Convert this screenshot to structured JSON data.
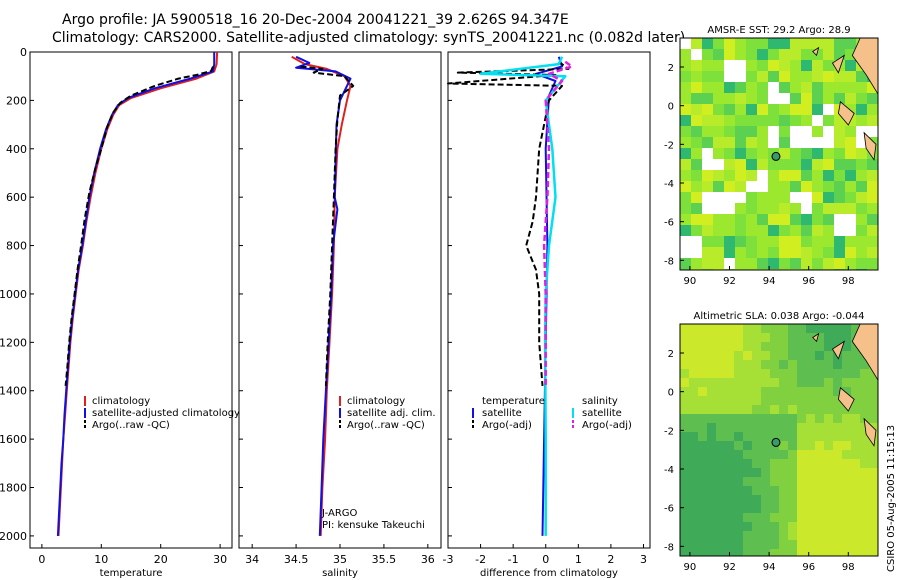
{
  "title_line1": "Argo profile: JA 5900518_16 20-Dec-2004 20041221_39 2.626S 94.347E",
  "title_line2": "Climatology: CARS2000. Satellite-adjusted climatology: synTS_20041221.nc (0.082d later)",
  "credit": "CSIRO 05-Aug-2005 11:15:13",
  "colors": {
    "climatology": "#e02020",
    "satellite": "#1010e0",
    "argo": "#000000",
    "salinity_sat": "#00e0f0",
    "salinity_argo": "#e020e0",
    "land": "#f5c08a"
  },
  "chart_data": [
    {
      "type": "line",
      "id": "temperature",
      "xlabel": "temperature",
      "ylabel": "",
      "xlim": [
        -2,
        32
      ],
      "ylim": [
        2050,
        0
      ],
      "xticks": [
        0,
        10,
        20,
        30
      ],
      "yticks": [
        0,
        200,
        400,
        600,
        800,
        1000,
        1200,
        1400,
        1600,
        1800,
        2000
      ],
      "legend_position": "bottom-right",
      "series": [
        {
          "name": "climatology",
          "style": "climatology",
          "points": [
            [
              29.5,
              0
            ],
            [
              29.4,
              50
            ],
            [
              29.0,
              80
            ],
            [
              26,
              110
            ],
            [
              20,
              150
            ],
            [
              15,
              190
            ],
            [
              13,
              220
            ],
            [
              12,
              260
            ],
            [
              11,
              320
            ],
            [
              10,
              400
            ],
            [
              9,
              500
            ],
            [
              8.2,
              600
            ],
            [
              7.5,
              700
            ],
            [
              6.9,
              800
            ],
            [
              6.2,
              900
            ],
            [
              5.7,
              1000
            ],
            [
              5.2,
              1100
            ],
            [
              4.8,
              1200
            ],
            [
              4.5,
              1300
            ],
            [
              4.2,
              1400
            ],
            [
              3.9,
              1500
            ],
            [
              3.6,
              1600
            ],
            [
              3.4,
              1700
            ],
            [
              3.2,
              1800
            ],
            [
              3.0,
              1900
            ],
            [
              2.8,
              2000
            ]
          ]
        },
        {
          "name": "satellite-adjusted climatology",
          "style": "satellite",
          "points": [
            [
              29.0,
              0
            ],
            [
              29.0,
              50
            ],
            [
              28.8,
              80
            ],
            [
              25,
              110
            ],
            [
              19,
              150
            ],
            [
              14.5,
              190
            ],
            [
              12.8,
              220
            ],
            [
              11.8,
              260
            ],
            [
              10.8,
              320
            ],
            [
              9.8,
              400
            ],
            [
              8.8,
              500
            ],
            [
              8.0,
              600
            ],
            [
              7.4,
              700
            ],
            [
              6.8,
              800
            ],
            [
              6.1,
              900
            ],
            [
              5.6,
              1000
            ],
            [
              5.1,
              1100
            ],
            [
              4.7,
              1200
            ],
            [
              4.4,
              1300
            ],
            [
              4.1,
              1400
            ],
            [
              3.8,
              1500
            ],
            [
              3.6,
              1600
            ],
            [
              3.3,
              1700
            ],
            [
              3.1,
              1800
            ],
            [
              2.9,
              1900
            ],
            [
              2.7,
              2000
            ]
          ]
        },
        {
          "name": "Argo(..raw -QC)",
          "style": "argo",
          "points": [
            [
              28.8,
              60
            ],
            [
              28.5,
              78
            ],
            [
              26,
              95
            ],
            [
              23,
              110
            ],
            [
              19,
              140
            ],
            [
              15,
              180
            ],
            [
              13.2,
              210
            ],
            [
              12,
              250
            ],
            [
              11,
              310
            ],
            [
              10,
              400
            ],
            [
              9.0,
              480
            ],
            [
              8.0,
              580
            ],
            [
              7.2,
              690
            ],
            [
              6.6,
              800
            ],
            [
              6.0,
              900
            ],
            [
              5.5,
              1000
            ],
            [
              5.0,
              1100
            ],
            [
              4.6,
              1200
            ],
            [
              4.3,
              1300
            ],
            [
              4.0,
              1380
            ]
          ]
        }
      ]
    },
    {
      "type": "line",
      "id": "salinity",
      "xlabel": "salinity",
      "xlim": [
        33.85,
        36.15
      ],
      "ylim": [
        2050,
        0
      ],
      "xticks": [
        34,
        34.5,
        35,
        35.5,
        36
      ],
      "yticks": [
        0,
        200,
        400,
        600,
        800,
        1000,
        1200,
        1400,
        1600,
        1800,
        2000
      ],
      "legend_position": "bottom-right",
      "annotations": [
        "J-ARGO",
        "PI: kensuke Takeuchi"
      ],
      "series": [
        {
          "name": "climatology",
          "style": "climatology",
          "points": [
            [
              34.45,
              20
            ],
            [
              34.6,
              50
            ],
            [
              34.85,
              70
            ],
            [
              35.05,
              100
            ],
            [
              35.12,
              140
            ],
            [
              35.08,
              200
            ],
            [
              35.02,
              300
            ],
            [
              34.97,
              400
            ],
            [
              34.94,
              600
            ],
            [
              34.93,
              800
            ],
            [
              34.91,
              1000
            ],
            [
              34.88,
              1200
            ],
            [
              34.85,
              1400
            ],
            [
              34.83,
              1600
            ],
            [
              34.8,
              1800
            ],
            [
              34.78,
              2000
            ]
          ]
        },
        {
          "name": "satellite adj. clim.",
          "style": "satellite",
          "points": [
            [
              34.5,
              20
            ],
            [
              34.65,
              45
            ],
            [
              34.5,
              65
            ],
            [
              34.95,
              80
            ],
            [
              35.12,
              110
            ],
            [
              35.0,
              200
            ],
            [
              34.96,
              300
            ],
            [
              34.95,
              450
            ],
            [
              34.94,
              600
            ],
            [
              34.97,
              650
            ],
            [
              34.92,
              800
            ],
            [
              34.9,
              1000
            ],
            [
              34.87,
              1200
            ],
            [
              34.84,
              1400
            ],
            [
              34.81,
              1600
            ],
            [
              34.79,
              1800
            ],
            [
              34.77,
              2000
            ]
          ]
        },
        {
          "name": "Argo(..raw -QC)",
          "style": "argo",
          "points": [
            [
              34.55,
              60
            ],
            [
              34.8,
              70
            ],
            [
              34.7,
              85
            ],
            [
              35.05,
              100
            ],
            [
              35.15,
              140
            ],
            [
              35.0,
              180
            ],
            [
              34.97,
              280
            ],
            [
              34.95,
              400
            ],
            [
              34.93,
              600
            ],
            [
              34.91,
              800
            ],
            [
              34.89,
              1000
            ],
            [
              34.86,
              1200
            ],
            [
              34.84,
              1380
            ]
          ]
        }
      ]
    },
    {
      "type": "line",
      "id": "difference",
      "xlabel": "difference from climatology",
      "xlim": [
        -3.0,
        3.2
      ],
      "ylim": [
        2050,
        0
      ],
      "xticks": [
        -3,
        -2,
        -1,
        0,
        1,
        2,
        3
      ],
      "yticks": [
        0,
        200,
        400,
        600,
        800,
        1000,
        1200,
        1400,
        1600,
        1800,
        2000
      ],
      "legend_position": "bottom",
      "legend_headers": [
        "temperature",
        "salinity"
      ],
      "series": [
        {
          "name": "satellite",
          "group": "temperature",
          "style": "satellite",
          "points": [
            [
              0.4,
              20
            ],
            [
              0.5,
              60
            ],
            [
              -0.3,
              90
            ],
            [
              0.3,
              120
            ],
            [
              0.1,
              180
            ],
            [
              0.0,
              400
            ],
            [
              0.05,
              800
            ],
            [
              0.0,
              1200
            ],
            [
              -0.05,
              1600
            ],
            [
              -0.1,
              2000
            ]
          ]
        },
        {
          "name": "Argo(-adj)",
          "group": "temperature",
          "style": "argo",
          "points": [
            [
              0.4,
              40
            ],
            [
              0.7,
              70
            ],
            [
              -2.7,
              85
            ],
            [
              0.3,
              95
            ],
            [
              -3.0,
              130
            ],
            [
              0.5,
              140
            ],
            [
              0.1,
              200
            ],
            [
              -0.2,
              400
            ],
            [
              -0.3,
              600
            ],
            [
              -0.4,
              700
            ],
            [
              -0.6,
              800
            ],
            [
              -0.3,
              900
            ],
            [
              -0.2,
              1000
            ],
            [
              -0.2,
              1200
            ],
            [
              -0.1,
              1380
            ]
          ]
        },
        {
          "name": "satellite",
          "group": "salinity",
          "style": "salinity_sat",
          "points": [
            [
              0.5,
              20
            ],
            [
              0.4,
              50
            ],
            [
              -2.0,
              90
            ],
            [
              0.6,
              100
            ],
            [
              0.0,
              200
            ],
            [
              0.2,
              400
            ],
            [
              0.3,
              600
            ],
            [
              0.1,
              800
            ],
            [
              0.0,
              1000
            ],
            [
              -0.02,
              1200
            ],
            [
              0.0,
              1600
            ],
            [
              0.0,
              2000
            ]
          ]
        },
        {
          "name": "Argo(-adj)",
          "group": "salinity",
          "style": "salinity_argo",
          "points": [
            [
              0.6,
              40
            ],
            [
              0.8,
              60
            ],
            [
              0.1,
              90
            ],
            [
              0.5,
              120
            ],
            [
              0.0,
              200
            ],
            [
              0.1,
              400
            ],
            [
              0.05,
              600
            ],
            [
              -0.05,
              800
            ],
            [
              0.0,
              1000
            ],
            [
              0.0,
              1200
            ],
            [
              0.0,
              1380
            ]
          ]
        }
      ]
    },
    {
      "type": "heatmap",
      "id": "sst-map",
      "title": "AMSR-E SST: 29.2 Argo: 28.9",
      "xlim": [
        89.5,
        99.5
      ],
      "ylim": [
        -8.5,
        3.5
      ],
      "xticks": [
        90,
        92,
        94,
        96,
        98
      ],
      "yticks": [
        -8,
        -6,
        -4,
        -2,
        0,
        2
      ],
      "marker": [
        94.347,
        -2.626
      ]
    },
    {
      "type": "heatmap",
      "id": "sla-map",
      "title": "Altimetric SLA: 0.038 Argo: -0.044",
      "xlim": [
        89.5,
        99.5
      ],
      "ylim": [
        -8.5,
        3.5
      ],
      "xticks": [
        90,
        92,
        94,
        96,
        98
      ],
      "yticks": [
        -8,
        -6,
        -4,
        -2,
        0,
        2
      ],
      "marker": [
        94.347,
        -2.626
      ]
    }
  ]
}
